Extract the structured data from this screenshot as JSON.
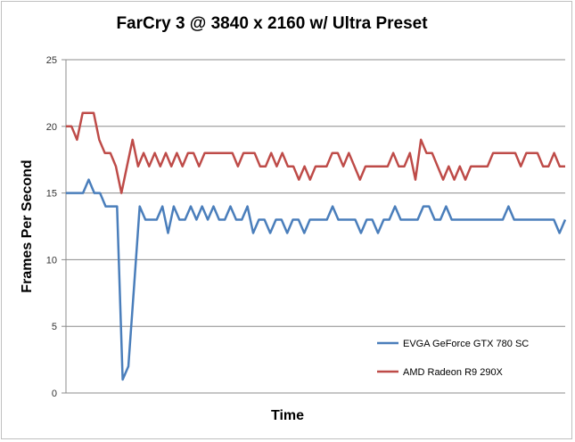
{
  "chart_data": {
    "type": "line",
    "title": "FarCry 3 @ 3840 x 2160 w/ Ultra Preset",
    "xlabel": "Time",
    "ylabel": "Frames Per Second",
    "ylim": [
      0,
      25
    ],
    "yticks": [
      "0",
      "5",
      "10",
      "15",
      "20",
      "25"
    ],
    "grid": true,
    "legend_position": "bottom-right",
    "series": [
      {
        "name": "EVGA GeForce GTX 780 SC",
        "color": "#4a7ebb",
        "values": [
          15,
          15,
          15,
          15,
          16,
          15,
          15,
          14,
          14,
          14,
          1,
          2,
          8,
          14,
          13,
          13,
          13,
          14,
          12,
          14,
          13,
          13,
          14,
          13,
          14,
          13,
          14,
          13,
          13,
          14,
          13,
          13,
          14,
          12,
          13,
          13,
          12,
          13,
          13,
          12,
          13,
          13,
          12,
          13,
          13,
          13,
          13,
          14,
          13,
          13,
          13,
          13,
          12,
          13,
          13,
          12,
          13,
          13,
          14,
          13,
          13,
          13,
          13,
          14,
          14,
          13,
          13,
          14,
          13,
          13,
          13,
          13,
          13,
          13,
          13,
          13,
          13,
          13,
          14,
          13,
          13,
          13,
          13,
          13,
          13,
          13,
          13,
          12,
          13
        ]
      },
      {
        "name": "AMD Radeon R9 290X",
        "color": "#be4b48",
        "values": [
          20,
          20,
          19,
          21,
          21,
          21,
          19,
          18,
          18,
          17,
          15,
          17,
          19,
          17,
          18,
          17,
          18,
          17,
          18,
          17,
          18,
          17,
          18,
          18,
          17,
          18,
          18,
          18,
          18,
          18,
          18,
          17,
          18,
          18,
          18,
          17,
          17,
          18,
          17,
          18,
          17,
          17,
          16,
          17,
          16,
          17,
          17,
          17,
          18,
          18,
          17,
          18,
          17,
          16,
          17,
          17,
          17,
          17,
          17,
          18,
          17,
          17,
          18,
          16,
          19,
          18,
          18,
          17,
          16,
          17,
          16,
          17,
          16,
          17,
          17,
          17,
          17,
          18,
          18,
          18,
          18,
          18,
          17,
          18,
          18,
          18,
          17,
          17,
          18,
          17,
          17
        ]
      }
    ]
  }
}
